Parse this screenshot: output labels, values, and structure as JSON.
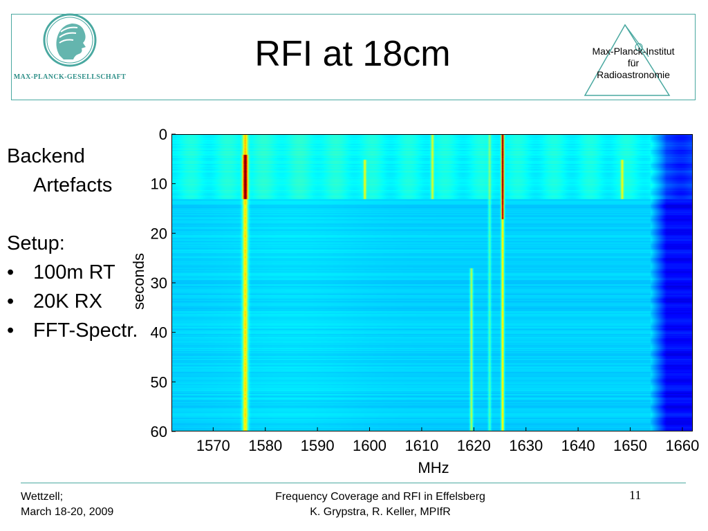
{
  "header": {
    "title": "RFI at 18cm",
    "mpg_logo_text": "MAX-PLANCK-GESELLSCHAFT",
    "mpifr_lines": [
      "Max-Planck-Institut",
      "für",
      "Radioastronomie"
    ]
  },
  "bullets": {
    "backend_line1": "Backend",
    "backend_line2": "Artefacts",
    "setup_label": "Setup:",
    "items": [
      "100m RT",
      "20K RX",
      "FFT-Spectr."
    ]
  },
  "chart_data": {
    "type": "heatmap",
    "title": "",
    "xlabel": "MHz",
    "ylabel": "seconds",
    "xlim": [
      1562,
      1662
    ],
    "ylim": [
      0,
      60
    ],
    "y_inverted": true,
    "x_ticks": [
      1570,
      1580,
      1590,
      1600,
      1610,
      1620,
      1630,
      1640,
      1650,
      1660
    ],
    "y_ticks": [
      0,
      10,
      20,
      30,
      40,
      50,
      60
    ],
    "colormap": "jet",
    "background_level_color": "#1f86ee",
    "features": [
      {
        "kind": "time_band",
        "t_start": 0,
        "t_end": 13,
        "note": "elevated band, backend artefact"
      },
      {
        "kind": "freq_line",
        "freq": 1576,
        "t_start": 0,
        "t_end": 60,
        "peak_t": [
          4,
          13
        ],
        "intensity": "high"
      },
      {
        "kind": "freq_line",
        "freq": 1599,
        "t_start": 5,
        "t_end": 13,
        "intensity": "medium"
      },
      {
        "kind": "freq_line",
        "freq": 1612,
        "t_start": 0,
        "t_end": 13,
        "intensity": "medium"
      },
      {
        "kind": "freq_line",
        "freq": 1619.5,
        "t_start": 27,
        "t_end": 60,
        "intensity": "medium"
      },
      {
        "kind": "freq_line",
        "freq": 1623,
        "t_start": 0,
        "t_end": 60,
        "intensity": "low"
      },
      {
        "kind": "freq_line",
        "freq": 1625.5,
        "t_start": 0,
        "t_end": 60,
        "peak_t": [
          0,
          17
        ],
        "intensity": "high"
      },
      {
        "kind": "freq_line",
        "freq": 1648.5,
        "t_start": 5,
        "t_end": 13,
        "intensity": "medium"
      },
      {
        "kind": "freq_region",
        "f_start": 1654,
        "f_end": 1662,
        "note": "low-power band edge"
      }
    ]
  },
  "footer": {
    "left": [
      "Wettzell;",
      "March 18-20, 2009"
    ],
    "center": [
      "Frequency Coverage and RFI in Effelsberg",
      "K. Grypstra, R. Keller, MPIfR"
    ],
    "page": "11"
  },
  "colors": {
    "accent": "#49a8a0"
  }
}
